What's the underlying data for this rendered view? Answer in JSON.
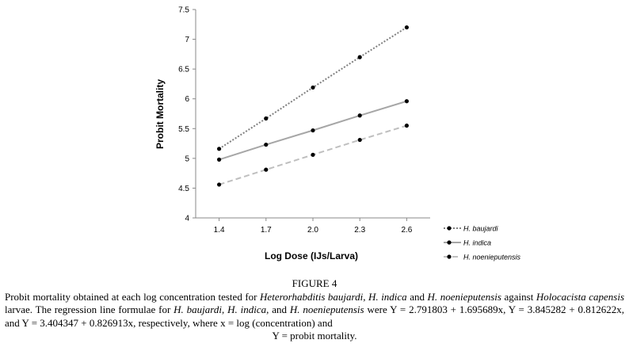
{
  "chart_data": {
    "type": "line",
    "title": "",
    "xlabel": "Log Dose (IJs/Larva)",
    "ylabel": "Probit Mortality",
    "categories": [
      "1.4",
      "1.7",
      "2.0",
      "2.3",
      "2.6"
    ],
    "x": [
      1.4,
      1.7,
      2.0,
      2.3,
      2.6
    ],
    "ylim": [
      4,
      7.5
    ],
    "yticks": [
      "4",
      "4.5",
      "5",
      "5.5",
      "6",
      "6.5",
      "7",
      "7.5"
    ],
    "legend_position": "right",
    "series": [
      {
        "name": "H. baujardi",
        "style": "dotted",
        "color": "#808080",
        "values": [
          5.16,
          5.67,
          6.19,
          6.7,
          7.2
        ]
      },
      {
        "name": "H. indica",
        "style": "solid",
        "color": "#a6a6a6",
        "values": [
          4.98,
          5.23,
          5.47,
          5.72,
          5.96
        ]
      },
      {
        "name": "H. noenieputensis",
        "style": "dashed",
        "color": "#bfbfbf",
        "values": [
          4.56,
          4.81,
          5.06,
          5.31,
          5.55
        ]
      }
    ]
  },
  "caption": {
    "figure_label": "FIGURE 4",
    "t1": "Probit mortality obtained at each log concentration tested for ",
    "i1": "Heterorhabditis baujardi",
    "t2": ", ",
    "i2": "H. indica",
    "t3": " and ",
    "i3": "H. noenieputensis",
    "t4": " against ",
    "i4": "Holocacista capensis",
    "t5": " larvae. The regression line formulae for ",
    "i5": "H. baujardi",
    "t6": ", ",
    "i6": "H. indica",
    "t7": ", and ",
    "i7": "H. noenieputensis",
    "t8": " were Y = 2.791803 + 1.695689x, Y = 3.845282 + 0.812622x, and Y = 3.404347 + 0.826913x, respectively, where x = log (concentration) and",
    "t9": "Y = probit mortality."
  }
}
